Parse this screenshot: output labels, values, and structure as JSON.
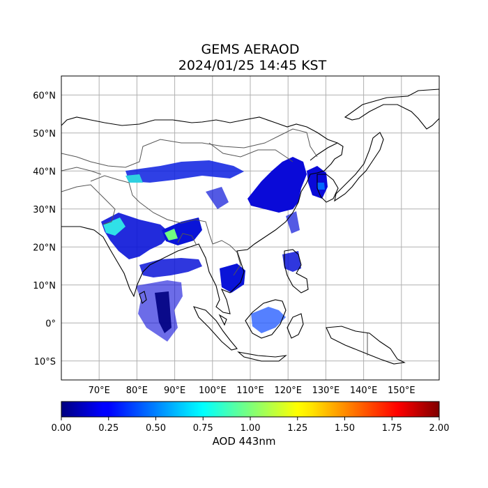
{
  "title": {
    "product": "GEMS AERAOD",
    "datetime": "2024/01/25 14:45 KST"
  },
  "map": {
    "lon_labels": [
      "70°E",
      "80°E",
      "90°E",
      "100°E",
      "110°E",
      "120°E",
      "130°E",
      "140°E",
      "150°E"
    ],
    "lat_labels": [
      "60°N",
      "50°N",
      "40°N",
      "30°N",
      "20°N",
      "10°N",
      "0°",
      "10°S"
    ],
    "lon_range": [
      60,
      160
    ],
    "lat_range": [
      -15,
      65
    ],
    "gridlines": true,
    "gridline_color": "#b0b0b0",
    "coastline_color": "#000000",
    "border_color": "#444444"
  },
  "colorbar": {
    "colormap": "jet",
    "range": [
      0.0,
      2.0
    ],
    "tick_labels": [
      "0.00",
      "0.25",
      "0.50",
      "0.75",
      "1.00",
      "1.25",
      "1.50",
      "1.75",
      "2.00"
    ],
    "label": "AOD 443nm"
  }
}
